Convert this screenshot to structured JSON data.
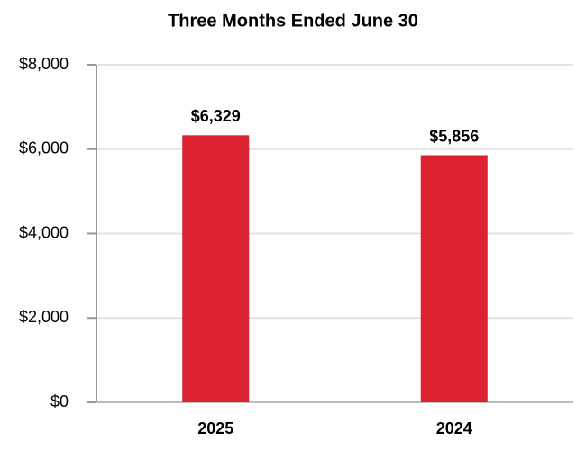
{
  "chart_data": {
    "type": "bar",
    "title": "Three Months Ended June 30",
    "categories": [
      "2025",
      "2024"
    ],
    "values": [
      6329,
      5856
    ],
    "value_labels": [
      "$6,329",
      "$5,856"
    ],
    "color": "#dc2230",
    "ylim": [
      0,
      8000
    ],
    "yticks": [
      {
        "value": 0,
        "label": "$0"
      },
      {
        "value": 2000,
        "label": "$2,000"
      },
      {
        "value": 4000,
        "label": "$4,000"
      },
      {
        "value": 6000,
        "label": "$6,000"
      },
      {
        "value": 8000,
        "label": "$8,000"
      }
    ],
    "grid": true
  }
}
